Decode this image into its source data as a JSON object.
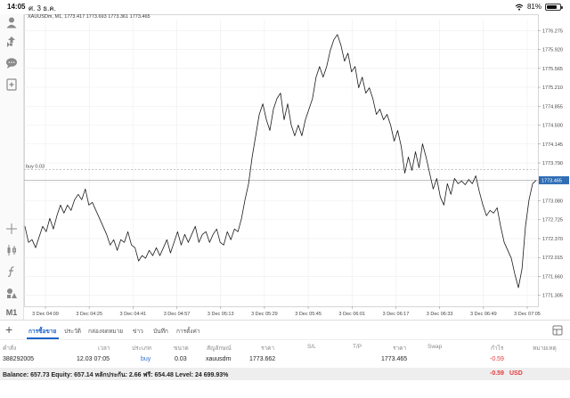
{
  "status_bar": {
    "time": "14:05",
    "date": "ศ. 3 ธ.ค.",
    "battery_text": "81%",
    "battery_level": 0.81,
    "icons": [
      "wifi-icon",
      "battery-icon"
    ]
  },
  "chart_header": "XAUUSDm, M1, 1773.417 1773.693 1773.361 1773.465",
  "toolbar": {
    "timeframe_label": "M1",
    "icons": [
      "account-icon",
      "trade-icon",
      "chat-icon",
      "new-order-icon",
      "crosshair-icon",
      "candlestick-icon",
      "function-icon",
      "objects-icon"
    ]
  },
  "chart_data": {
    "type": "line",
    "yticks": [
      1776.275,
      1775.92,
      1775.565,
      1775.21,
      1774.855,
      1774.5,
      1774.145,
      1773.79,
      1773.435,
      1773.08,
      1772.725,
      1772.37,
      1772.015,
      1771.66,
      1771.305
    ],
    "ylim": [
      1771.1,
      1776.48
    ],
    "xticks": [
      "3 Dec 04:09",
      "3 Dec 04:25",
      "3 Dec 04:41",
      "3 Dec 04:57",
      "3 Dec 05:13",
      "3 Dec 05:29",
      "3 Dec 05:45",
      "3 Dec 06:01",
      "3 Dec 06:17",
      "3 Dec 06:33",
      "3 Dec 06:49",
      "3 Dec 07:05"
    ],
    "series": [
      {
        "values": [
          1772.6,
          1772.3,
          1772.35,
          1772.2,
          1772.4,
          1772.6,
          1772.5,
          1772.75,
          1772.55,
          1772.8,
          1773.0,
          1772.85,
          1773.0,
          1772.9,
          1773.1,
          1773.2,
          1773.1,
          1773.3,
          1773.0,
          1773.05,
          1772.9,
          1772.75,
          1772.6,
          1772.45,
          1772.25,
          1772.35,
          1772.15,
          1772.35,
          1772.3,
          1772.5,
          1772.25,
          1772.2,
          1771.95,
          1772.05,
          1772.0,
          1772.15,
          1772.05,
          1772.2,
          1772.05,
          1772.2,
          1772.35,
          1772.1,
          1772.3,
          1772.5,
          1772.25,
          1772.45,
          1772.3,
          1772.45,
          1772.6,
          1772.3,
          1772.45,
          1772.5,
          1772.3,
          1772.45,
          1772.55,
          1772.3,
          1772.25,
          1772.5,
          1772.35,
          1772.55,
          1772.5,
          1772.75,
          1773.1,
          1773.4,
          1773.9,
          1774.3,
          1774.7,
          1774.9,
          1774.6,
          1774.4,
          1774.8,
          1775.0,
          1775.1,
          1774.6,
          1774.9,
          1774.5,
          1774.3,
          1774.5,
          1774.3,
          1774.6,
          1774.8,
          1775.0,
          1775.4,
          1775.6,
          1775.4,
          1775.6,
          1775.9,
          1776.1,
          1776.2,
          1776.0,
          1775.7,
          1775.85,
          1775.5,
          1775.6,
          1775.2,
          1775.4,
          1775.1,
          1775.2,
          1775.0,
          1774.7,
          1774.8,
          1774.6,
          1774.7,
          1774.5,
          1774.2,
          1774.4,
          1774.1,
          1773.6,
          1773.9,
          1773.65,
          1774.0,
          1773.7,
          1774.15,
          1773.9,
          1773.6,
          1773.3,
          1773.5,
          1773.15,
          1773.0,
          1773.4,
          1773.2,
          1773.5,
          1773.4,
          1773.45,
          1773.38,
          1773.48,
          1773.4,
          1773.55,
          1773.25,
          1773.0,
          1772.8,
          1772.9,
          1772.85,
          1772.95,
          1772.6,
          1772.3,
          1772.15,
          1772.0,
          1771.7,
          1771.45,
          1771.8,
          1772.6,
          1773.1,
          1773.4,
          1773.465
        ]
      }
    ],
    "current_price_label": "1773.465",
    "current_price": 1773.465,
    "buy_line_label": "buy 0.03",
    "buy_price": 1773.662,
    "grid": true,
    "colors": {
      "line": "#1a1a1a",
      "price_label_bg": "#2f6db5",
      "grid": "#ededed"
    }
  },
  "tabs": {
    "plus": "+",
    "items": [
      "การซื้อขาย",
      "ประวัติ",
      "กล่องจดหมาย",
      "ข่าว",
      "บันทึก",
      "การตั้งค่า"
    ],
    "active_index": 0
  },
  "table": {
    "headers": [
      "คำสั่ง",
      "เวลา",
      "ประเภท",
      "ขนาด",
      "สัญลักษณ์",
      "ราคา",
      "S/L",
      "T/P",
      "ราคา",
      "Swap",
      "กำไร",
      "หมายเหตุ"
    ],
    "row": {
      "order": "388292005",
      "time": "12.03 07:05",
      "type": "buy",
      "size": "0.03",
      "symbol": "xauusdm",
      "open_price": "1773.662",
      "price": "1773.465",
      "profit": "-0.59"
    }
  },
  "balance": {
    "text": "Balance: 657.73 Equity: 657.14 หลักประกัน: 2.66 ฟรี: 654.48 Level: 24 699.93%",
    "total": "-0.59",
    "currency": "USD"
  }
}
